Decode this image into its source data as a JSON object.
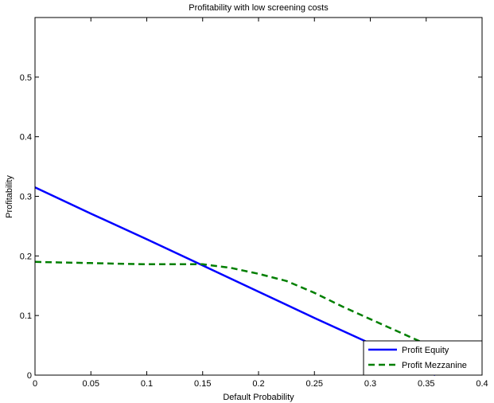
{
  "chart_data": {
    "type": "line",
    "title": "Profitability with low screening costs",
    "xlabel": "Default Probability",
    "ylabel": "Profitability",
    "xlim": [
      0,
      0.4
    ],
    "ylim": [
      0,
      0.6
    ],
    "xticks": [
      0,
      0.05,
      0.1,
      0.15,
      0.2,
      0.25,
      0.3,
      0.35,
      0.4
    ],
    "xtick_labels": [
      "0",
      "0.05",
      "0.1",
      "0.15",
      "0.2",
      "0.25",
      "0.3",
      "0.35",
      "0.4"
    ],
    "yticks": [
      0,
      0.1,
      0.2,
      0.3,
      0.4,
      0.5
    ],
    "ytick_labels": [
      "0",
      "0.1",
      "0.2",
      "0.3",
      "0.4",
      "0.5"
    ],
    "grid": false,
    "legend_position": "bottom-right",
    "series": [
      {
        "name": "Profit Equity",
        "color": "#0000ff",
        "style": "solid",
        "x": [
          0,
          0.05,
          0.1,
          0.15,
          0.2,
          0.25,
          0.3,
          0.35,
          0.358
        ],
        "y": [
          0.315,
          0.271,
          0.228,
          0.184,
          0.14,
          0.096,
          0.053,
          0.009,
          0.0
        ]
      },
      {
        "name": "Profit Mezzanine",
        "color": "#007f00",
        "style": "dashed",
        "x": [
          0,
          0.025,
          0.05,
          0.075,
          0.1,
          0.125,
          0.15,
          0.175,
          0.2,
          0.225,
          0.25,
          0.275,
          0.3,
          0.325,
          0.35,
          0.375,
          0.4
        ],
        "y": [
          0.19,
          0.189,
          0.188,
          0.187,
          0.186,
          0.186,
          0.186,
          0.18,
          0.17,
          0.158,
          0.138,
          0.115,
          0.094,
          0.073,
          0.052,
          0.033,
          0.015
        ]
      }
    ]
  }
}
